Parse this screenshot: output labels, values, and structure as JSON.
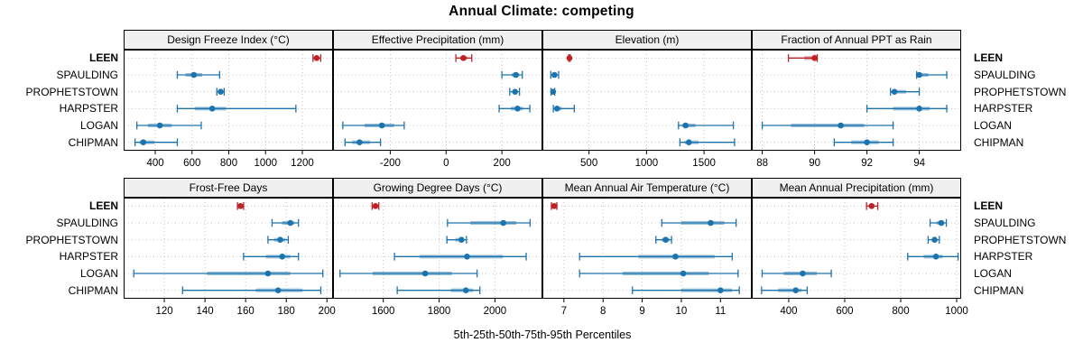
{
  "title": "Annual Climate: competing",
  "axis_caption": "5th-25th-50th-75th-95th Percentiles",
  "categories": [
    "LEEN",
    "SPAULDING",
    "PROPHETSTOWN",
    "HARPSTER",
    "LOGAN",
    "CHIPMAN"
  ],
  "highlight_category": "LEEN",
  "colors": {
    "highlight": "#bb2327",
    "series": "#1c73ae",
    "grid": "#c3c3c3",
    "strip_bg": "#f0f0f0",
    "panel_border": "#000000",
    "background": "#ffffff"
  },
  "chart_data": [
    {
      "type": "dotplot-interval",
      "title": "Design Freeze Index (°C)",
      "xlim": [
        228,
        1367
      ],
      "ticks": [
        400,
        600,
        800,
        1000,
        1200
      ],
      "percentile_labels": [
        "p5",
        "p25",
        "p50",
        "p75",
        "p95"
      ],
      "series": [
        {
          "name": "LEEN",
          "percentiles": [
            1258,
            1270,
            1278,
            1287,
            1300
          ]
        },
        {
          "name": "SPAULDING",
          "percentiles": [
            520,
            565,
            610,
            655,
            750
          ]
        },
        {
          "name": "PROPHETSTOWN",
          "percentiles": [
            735,
            748,
            756,
            764,
            775
          ]
        },
        {
          "name": "HARPSTER",
          "percentiles": [
            520,
            615,
            710,
            785,
            1165
          ]
        },
        {
          "name": "LOGAN",
          "percentiles": [
            300,
            360,
            425,
            490,
            650
          ]
        },
        {
          "name": "CHIPMAN",
          "percentiles": [
            290,
            315,
            335,
            395,
            520
          ]
        }
      ]
    },
    {
      "type": "dotplot-interval",
      "title": "Effective Precipitation (mm)",
      "xlim": [
        -405,
        345
      ],
      "ticks": [
        -200,
        0,
        200
      ],
      "series": [
        {
          "name": "LEEN",
          "percentiles": [
            35,
            50,
            62,
            76,
            92
          ]
        },
        {
          "name": "SPAULDING",
          "percentiles": [
            200,
            235,
            250,
            262,
            273
          ]
        },
        {
          "name": "PROPHETSTOWN",
          "percentiles": [
            228,
            240,
            247,
            254,
            263
          ]
        },
        {
          "name": "HARPSTER",
          "percentiles": [
            190,
            232,
            256,
            276,
            300
          ]
        },
        {
          "name": "LOGAN",
          "percentiles": [
            -370,
            -292,
            -230,
            -186,
            -150
          ]
        },
        {
          "name": "CHIPMAN",
          "percentiles": [
            -362,
            -336,
            -310,
            -272,
            -235
          ]
        }
      ]
    },
    {
      "type": "dotplot-interval",
      "title": "Elevation (m)",
      "xlim": [
        95,
        1915
      ],
      "ticks": [
        500,
        1000,
        1500
      ],
      "series": [
        {
          "name": "LEEN",
          "percentiles": [
            324,
            327,
            330,
            333,
            336
          ]
        },
        {
          "name": "SPAULDING",
          "percentiles": [
            168,
            184,
            200,
            216,
            236
          ]
        },
        {
          "name": "PROPHETSTOWN",
          "percentiles": [
            170,
            180,
            188,
            194,
            202
          ]
        },
        {
          "name": "HARPSTER",
          "percentiles": [
            190,
            206,
            222,
            262,
            372
          ]
        },
        {
          "name": "LOGAN",
          "percentiles": [
            1278,
            1310,
            1340,
            1425,
            1755
          ]
        },
        {
          "name": "CHIPMAN",
          "percentiles": [
            1290,
            1332,
            1368,
            1452,
            1765
          ]
        }
      ]
    },
    {
      "type": "dotplot-interval",
      "title": "Fraction of Annual PPT as Rain",
      "xlim": [
        87.6,
        95.6
      ],
      "ticks": [
        88,
        90,
        92,
        94
      ],
      "series": [
        {
          "name": "LEEN",
          "percentiles": [
            89.0,
            89.6,
            90.0,
            90.05,
            90.1
          ]
        },
        {
          "name": "SPAULDING",
          "percentiles": [
            93.9,
            93.95,
            94.0,
            94.35,
            95.05
          ]
        },
        {
          "name": "PROPHETSTOWN",
          "percentiles": [
            92.9,
            93.0,
            93.05,
            93.5,
            94.0
          ]
        },
        {
          "name": "HARPSTER",
          "percentiles": [
            92.0,
            93.0,
            94.0,
            94.4,
            95.05
          ]
        },
        {
          "name": "LOGAN",
          "percentiles": [
            88.0,
            89.1,
            91.0,
            91.9,
            93.0
          ]
        },
        {
          "name": "CHIPMAN",
          "percentiles": [
            90.75,
            91.4,
            92.0,
            92.45,
            93.0
          ]
        }
      ]
    },
    {
      "type": "dotplot-interval",
      "title": "Frost-Free Days",
      "xlim": [
        100,
        203
      ],
      "ticks": [
        120,
        140,
        160,
        180,
        200
      ],
      "series": [
        {
          "name": "LEEN",
          "percentiles": [
            156,
            157,
            157.5,
            158,
            159
          ]
        },
        {
          "name": "SPAULDING",
          "percentiles": [
            173,
            178,
            182,
            184,
            186
          ]
        },
        {
          "name": "PROPHETSTOWN",
          "percentiles": [
            171,
            174,
            177,
            179.5,
            181
          ]
        },
        {
          "name": "HARPSTER",
          "percentiles": [
            159,
            170,
            178,
            182,
            186
          ]
        },
        {
          "name": "LOGAN",
          "percentiles": [
            105,
            141,
            171,
            182,
            198
          ]
        },
        {
          "name": "CHIPMAN",
          "percentiles": [
            129,
            165,
            176,
            188,
            197
          ]
        }
      ]
    },
    {
      "type": "dotplot-interval",
      "title": "Growing Degree Days (°C)",
      "xlim": [
        1420,
        2170
      ],
      "ticks": [
        1600,
        1800,
        2000
      ],
      "series": [
        {
          "name": "LEEN",
          "percentiles": [
            1560,
            1566,
            1572,
            1578,
            1584
          ]
        },
        {
          "name": "SPAULDING",
          "percentiles": [
            1830,
            1912,
            2030,
            2076,
            2126
          ]
        },
        {
          "name": "PROPHETSTOWN",
          "percentiles": [
            1828,
            1858,
            1880,
            1890,
            1898
          ]
        },
        {
          "name": "HARPSTER",
          "percentiles": [
            1640,
            1730,
            1900,
            2028,
            2112
          ]
        },
        {
          "name": "LOGAN",
          "percentiles": [
            1445,
            1562,
            1750,
            1846,
            1936
          ]
        },
        {
          "name": "CHIPMAN",
          "percentiles": [
            1650,
            1842,
            1896,
            1922,
            1946
          ]
        }
      ]
    },
    {
      "type": "dotplot-interval",
      "title": "Mean Annual Air Temperature (°C)",
      "xlim": [
        6.45,
        11.8
      ],
      "ticks": [
        7,
        8,
        9,
        10,
        11
      ],
      "series": [
        {
          "name": "LEEN",
          "percentiles": [
            6.68,
            6.72,
            6.75,
            6.78,
            6.82
          ]
        },
        {
          "name": "SPAULDING",
          "percentiles": [
            9.5,
            10.0,
            10.75,
            11.1,
            11.4
          ]
        },
        {
          "name": "PROPHETSTOWN",
          "percentiles": [
            9.35,
            9.5,
            9.6,
            9.7,
            9.75
          ]
        },
        {
          "name": "HARPSTER",
          "percentiles": [
            7.4,
            8.9,
            9.85,
            10.85,
            11.3
          ]
        },
        {
          "name": "LOGAN",
          "percentiles": [
            7.4,
            8.5,
            10.05,
            10.7,
            11.45
          ]
        },
        {
          "name": "CHIPMAN",
          "percentiles": [
            8.75,
            10.0,
            11.0,
            11.3,
            11.48
          ]
        }
      ]
    },
    {
      "type": "dotplot-interval",
      "title": "Mean Annual Precipitation (mm)",
      "xlim": [
        268,
        1016
      ],
      "ticks": [
        400,
        600,
        800,
        1000
      ],
      "series": [
        {
          "name": "LEEN",
          "percentiles": [
            678,
            688,
            696,
            706,
            718
          ]
        },
        {
          "name": "SPAULDING",
          "percentiles": [
            905,
            928,
            945,
            953,
            963
          ]
        },
        {
          "name": "PROPHETSTOWN",
          "percentiles": [
            898,
            912,
            921,
            929,
            938
          ]
        },
        {
          "name": "HARPSTER",
          "percentiles": [
            825,
            882,
            926,
            950,
            1005
          ]
        },
        {
          "name": "LOGAN",
          "percentiles": [
            305,
            382,
            450,
            500,
            552
          ]
        },
        {
          "name": "CHIPMAN",
          "percentiles": [
            303,
            362,
            425,
            446,
            466
          ]
        }
      ]
    }
  ]
}
